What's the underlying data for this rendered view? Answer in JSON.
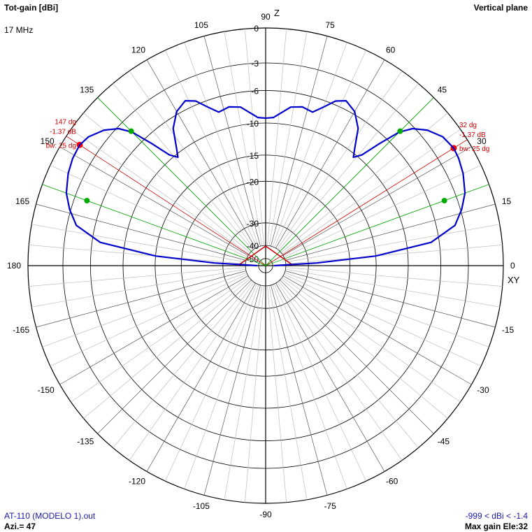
{
  "header": {
    "title": "Tot-gain [dBi]",
    "frequency": "17 MHz",
    "plane": "Vertical plane"
  },
  "footer": {
    "file": "AT-110 (MODELO 1).out",
    "azimuth": "Azi.= 47",
    "range": "-999 < dBi < -1.4",
    "max_gain": "Max gain Ele:32"
  },
  "chart_data": {
    "type": "polar-line",
    "angle_unit": "degrees",
    "angle_ticks": [
      "0",
      "15",
      "30",
      "45",
      "60",
      "75",
      "90",
      "105",
      "120",
      "135",
      "150",
      "165",
      "180",
      "-165",
      "-150",
      "-135",
      "-120",
      "-105",
      "-90",
      "-75",
      "-60",
      "-45",
      "-30",
      "-15"
    ],
    "angle_tick_values": [
      0,
      15,
      30,
      45,
      60,
      75,
      90,
      105,
      120,
      135,
      150,
      165,
      180,
      -165,
      -150,
      -135,
      -120,
      -105,
      -90,
      -75,
      -60,
      -45,
      -30,
      -15
    ],
    "radial_labels": [
      "0",
      "-3",
      "-6",
      "-10",
      "-15",
      "-20",
      "-30",
      "-40",
      "-50"
    ],
    "radial_values": [
      0,
      -3,
      -6,
      -10,
      -15,
      -20,
      -30,
      -40,
      -50
    ],
    "axis_labels": {
      "z": "Z",
      "xy": "XY"
    },
    "series": [
      {
        "color": "#0000cc",
        "points": [
          [
            0,
            -49
          ],
          [
            3,
            -28
          ],
          [
            5,
            -15
          ],
          [
            8,
            -7
          ],
          [
            12,
            -4
          ],
          [
            16,
            -2.9
          ],
          [
            20,
            -2.2
          ],
          [
            25,
            -1.7
          ],
          [
            29,
            -1.45
          ],
          [
            32,
            -1.37
          ],
          [
            36,
            -1.6
          ],
          [
            40,
            -2.3
          ],
          [
            43,
            -3.2
          ],
          [
            45,
            -4.5
          ],
          [
            47,
            -7
          ],
          [
            49,
            -9.5
          ],
          [
            51,
            -10.5
          ],
          [
            53,
            -9.3
          ],
          [
            56,
            -7.2
          ],
          [
            60,
            -5.7
          ],
          [
            64,
            -5.1
          ],
          [
            67,
            -5.6
          ],
          [
            70,
            -6.8
          ],
          [
            73,
            -7.8
          ],
          [
            77,
            -7.5
          ],
          [
            81,
            -7.8
          ],
          [
            84,
            -8.6
          ],
          [
            87,
            -9.3
          ],
          [
            90,
            -9.4
          ],
          [
            93,
            -9.3
          ],
          [
            96,
            -8.6
          ],
          [
            99,
            -7.8
          ],
          [
            103,
            -7.5
          ],
          [
            107,
            -7.8
          ],
          [
            110,
            -6.8
          ],
          [
            113,
            -5.6
          ],
          [
            116,
            -5.1
          ],
          [
            120,
            -5.7
          ],
          [
            124,
            -7.2
          ],
          [
            127,
            -9.3
          ],
          [
            129,
            -10.5
          ],
          [
            131,
            -9.5
          ],
          [
            133,
            -7
          ],
          [
            135,
            -4.5
          ],
          [
            137,
            -3.2
          ],
          [
            140,
            -2.3
          ],
          [
            144,
            -1.6
          ],
          [
            147,
            -1.37
          ],
          [
            151,
            -1.45
          ],
          [
            155,
            -1.7
          ],
          [
            160,
            -2.2
          ],
          [
            164,
            -2.9
          ],
          [
            168,
            -4
          ],
          [
            172,
            -7
          ],
          [
            175,
            -15
          ],
          [
            177,
            -28
          ],
          [
            180,
            -49
          ]
        ]
      }
    ],
    "beamwidth_markers": [
      {
        "angle": 32,
        "gain_db": -1.37,
        "bw_deg": 25,
        "angle_label": "32 dg",
        "gain_label": "-1.37 dB",
        "bw_label": "bw: 25 dg",
        "color": "#cc0000",
        "half_power_angles": [
          20,
          45
        ]
      },
      {
        "angle": 147,
        "gain_db": -1.37,
        "bw_deg": 25,
        "angle_label": "147 dg",
        "gain_label": "-1.37 dB",
        "bw_label": "bw: 25 dg",
        "color": "#cc0000",
        "half_power_angles": [
          135,
          160
        ]
      }
    ],
    "half_power_color": "#00aa00",
    "grid": true
  }
}
